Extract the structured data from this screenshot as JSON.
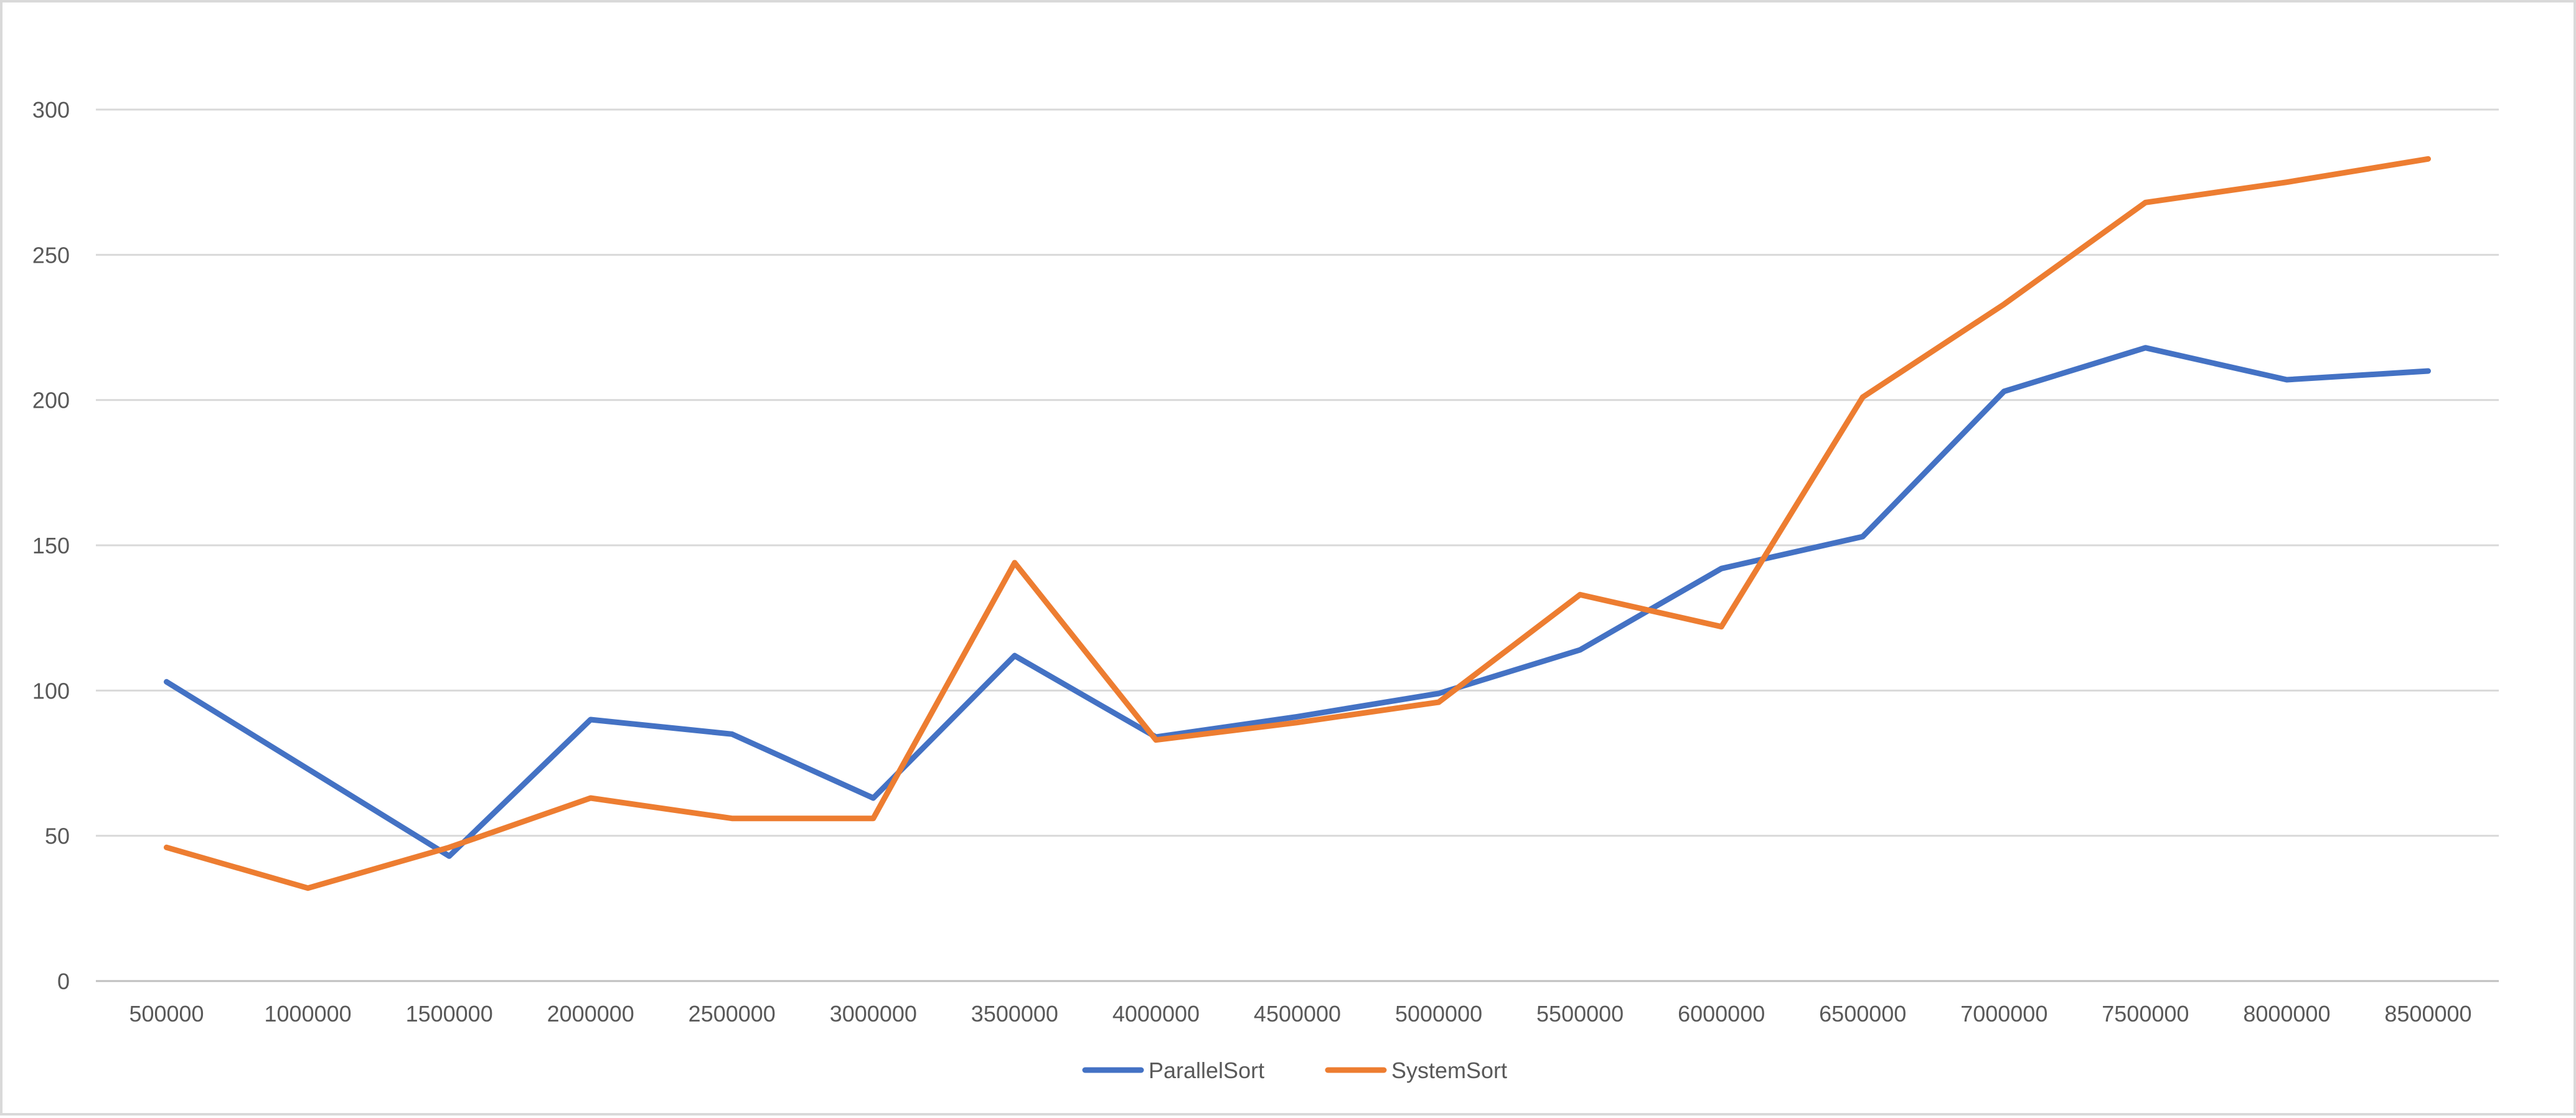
{
  "chart_data": {
    "type": "line",
    "title": "",
    "xlabel": "",
    "ylabel": "",
    "categories": [
      "500000",
      "1000000",
      "1500000",
      "2000000",
      "2500000",
      "3000000",
      "3500000",
      "4000000",
      "4500000",
      "5000000",
      "5500000",
      "6000000",
      "6500000",
      "7000000",
      "7500000",
      "8000000",
      "8500000"
    ],
    "series": [
      {
        "name": "ParallelSort",
        "color": "#4472c4",
        "values": [
          103,
          73,
          43,
          90,
          85,
          63,
          112,
          84,
          91,
          99,
          114,
          142,
          153,
          203,
          218,
          207,
          210
        ]
      },
      {
        "name": "SystemSort",
        "color": "#ed7d31",
        "values": [
          46,
          32,
          46,
          63,
          56,
          56,
          144,
          83,
          89,
          96,
          133,
          122,
          201,
          233,
          268,
          275,
          283
        ]
      }
    ],
    "ylim": [
      0,
      300
    ],
    "yticks": [
      "0",
      "50",
      "100",
      "150",
      "200",
      "250",
      "300"
    ],
    "grid": true,
    "legend_position": "bottom"
  }
}
